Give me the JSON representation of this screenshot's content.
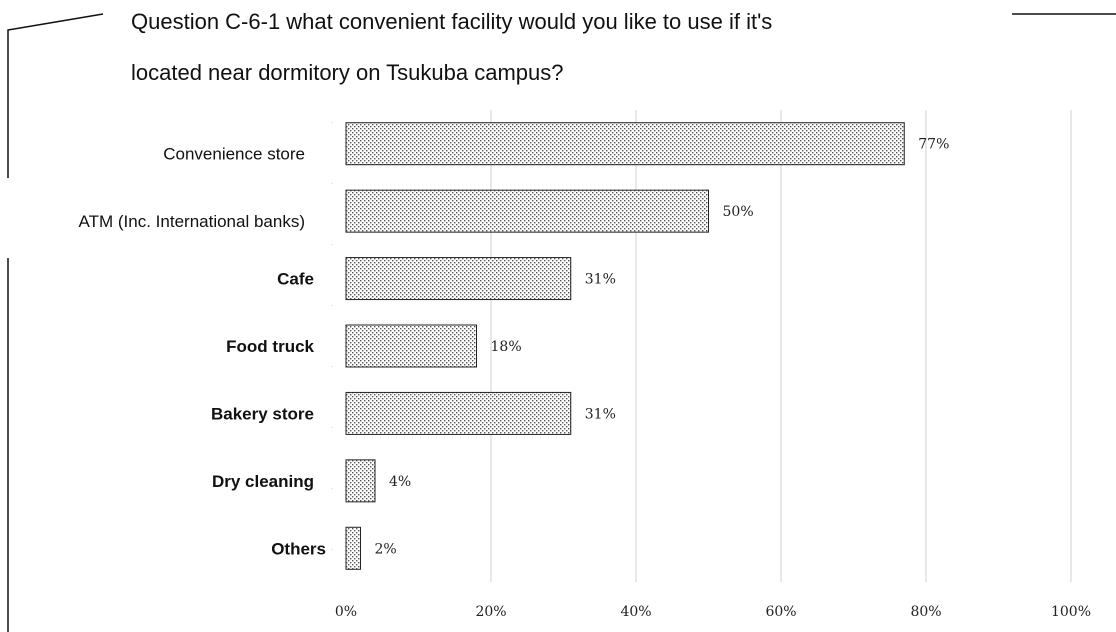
{
  "chart_data": {
    "type": "bar",
    "orientation": "horizontal",
    "title": "Question C-6-1 what convenient facility would you like to use if it's located near dormitory on Tsukuba campus?",
    "title_lines": [
      "Question C-6-1 what convenient facility would you like to use if it's",
      "located near dormitory on Tsukuba campus?"
    ],
    "categories": [
      "Convenience  store",
      "ATM (Inc. International banks)",
      "Cafe",
      "Food  truck",
      "Bakery  store",
      "Dry  cleaning",
      "Others"
    ],
    "values": [
      77,
      50,
      31,
      18,
      31,
      4,
      2
    ],
    "value_labels": [
      "77%",
      "50%",
      "31%",
      "18%",
      "31%",
      "4%",
      "2%"
    ],
    "xlim": [
      0,
      100
    ],
    "x_ticks": [
      0,
      20,
      40,
      60,
      80,
      100
    ],
    "x_tick_labels": [
      "0%",
      "20%",
      "40%",
      "60%",
      "80%",
      "100%"
    ],
    "xlabel": "",
    "ylabel": "",
    "grid": "vertical",
    "bar_fill": "dotted pattern",
    "colors": {
      "bar_dots": "#555555",
      "bar_border": "#222222",
      "grid": "#d0d0d0"
    }
  }
}
